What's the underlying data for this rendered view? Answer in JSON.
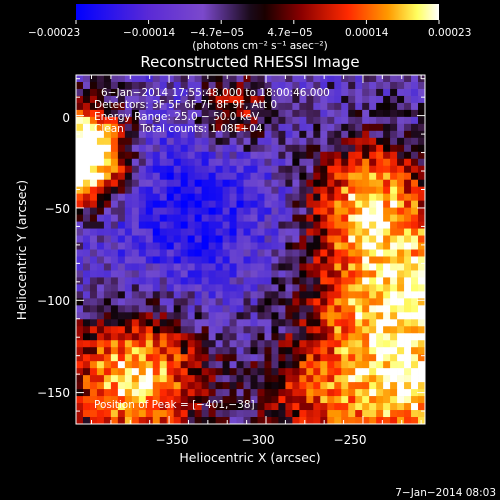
{
  "chart_data": {
    "type": "heatmap",
    "title": "Reconstructed RHESSI Image",
    "xlabel": "Heliocentric X (arcsec)",
    "ylabel": "Heliocentric Y (arcsec)",
    "xlim": [
      -398,
      -218
    ],
    "ylim": [
      -167,
      22
    ],
    "x_ticks": [
      -350,
      -300,
      -250
    ],
    "x_tick_labels": [
      "−350",
      "−300",
      "−250"
    ],
    "y_ticks": [
      0,
      -50,
      -100,
      -150
    ],
    "y_tick_labels": [
      "0",
      "−50",
      "−100",
      "−150"
    ],
    "grid": false,
    "colorbar": {
      "colormap": "blue-purple-black-red-yellow-white",
      "range": [
        -0.00023,
        0.00023
      ],
      "tick_labels": [
        "−0.00023",
        "−0.00014",
        "−4.7e−05",
        "4.7e−05",
        "0.00014",
        "0.00023"
      ],
      "units_label": "(photons cm⁻² s⁻¹ asec⁻²)"
    },
    "annotations": [
      "6−Jan−2014 17:55:48.000 to 18:00:46.000",
      "Detectors: 3F 5F 6F 7F 8F 9F, Att 0",
      "Energy Range: 25.0 − 50.0 keV",
      "Clean     Total counts: 1.08E+04"
    ],
    "peak_label": "Position of Peak = [−401,−38]",
    "peak": [
      -401,
      -38
    ],
    "footer_date": "7−Jan−2014 08:03"
  },
  "colors": {
    "background": "#000000",
    "text": "#ffffff",
    "colormap_stops": [
      "#0000ff",
      "#5a2ad6",
      "#7b49cc",
      "#1a0a1a",
      "#000000",
      "#8a0000",
      "#ff2a00",
      "#ff9a00",
      "#ffff60",
      "#ffffff"
    ]
  }
}
